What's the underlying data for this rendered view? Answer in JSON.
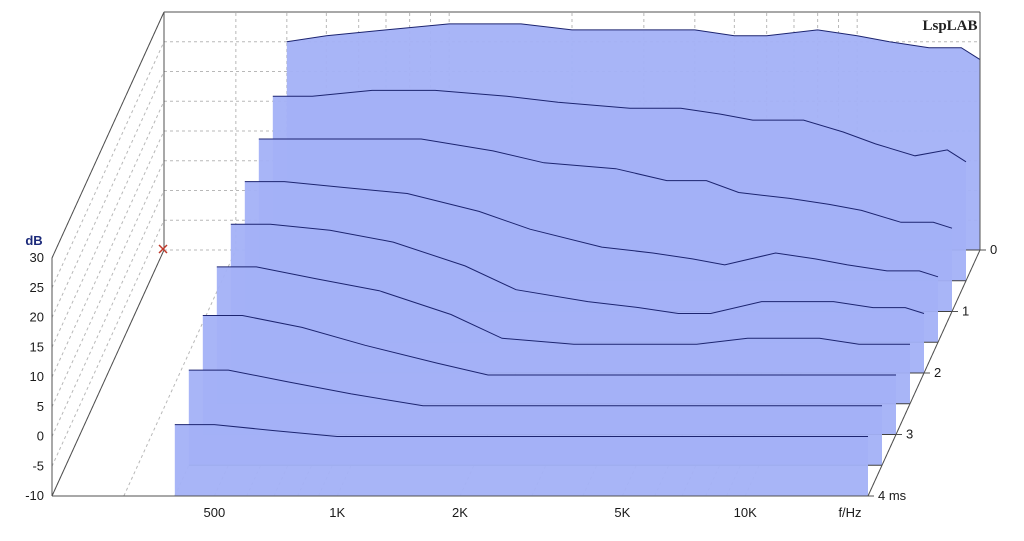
{
  "chart_data": {
    "type": "area",
    "subtype": "cumulative-spectral-decay-waterfall",
    "watermark": "LspLAB",
    "ylabel": "dB",
    "xlabel": "f/Hz",
    "zlabel": "ms",
    "ylim": [
      -10,
      30
    ],
    "xlim": [
      200,
      20000
    ],
    "x_scale": "log",
    "y_ticks": [
      "30",
      "25",
      "20",
      "15",
      "10",
      "5",
      "0",
      "-5",
      "-10"
    ],
    "x_ticks": [
      {
        "value": 500,
        "label": "500"
      },
      {
        "value": 1000,
        "label": "1K"
      },
      {
        "value": 2000,
        "label": "2K"
      },
      {
        "value": 5000,
        "label": "5K"
      },
      {
        "value": 10000,
        "label": "10K"
      }
    ],
    "time_ticks": [
      "0",
      "1",
      "2",
      "3",
      "4 ms"
    ],
    "grid": true,
    "colors": {
      "fill": "#a3b1f7",
      "line": "#1c2470",
      "grid": "#b8b8b8",
      "marker": "#c0392b"
    },
    "series": [
      {
        "time_ms": 0.0,
        "x": [
          400,
          500,
          700,
          1000,
          1500,
          2000,
          3000,
          4000,
          5000,
          6000,
          8000,
          10000,
          12000,
          15000,
          18000,
          20000
        ],
        "y": [
          25,
          26,
          27,
          28,
          28,
          27,
          27,
          27,
          26,
          26,
          27,
          26,
          25,
          24,
          24,
          22
        ]
      },
      {
        "time_ms": 0.5,
        "x": [
          400,
          500,
          700,
          1000,
          1500,
          2000,
          3000,
          4000,
          5000,
          6000,
          8000,
          10000,
          12000,
          15000,
          18000,
          20000
        ],
        "y": [
          21,
          21,
          22,
          22,
          21,
          20,
          19,
          19,
          18,
          17,
          17,
          15,
          13,
          11,
          12,
          10
        ]
      },
      {
        "time_ms": 1.0,
        "x": [
          400,
          500,
          700,
          1000,
          1500,
          2000,
          3000,
          4000,
          5000,
          6000,
          8000,
          10000,
          12000,
          15000,
          18000,
          20000
        ],
        "y": [
          19,
          19,
          19,
          19,
          17,
          15,
          14,
          12,
          12,
          10,
          9,
          8,
          7,
          5,
          5,
          4
        ]
      },
      {
        "time_ms": 1.5,
        "x": [
          400,
          500,
          700,
          1000,
          1500,
          2000,
          3000,
          4000,
          5000,
          6000,
          8000,
          10000,
          12000,
          15000,
          18000,
          20000
        ],
        "y": [
          17,
          17,
          16,
          15,
          12,
          9,
          6,
          5,
          4,
          3,
          5,
          4,
          3,
          2,
          2,
          1
        ]
      },
      {
        "time_ms": 2.0,
        "x": [
          400,
          500,
          700,
          1000,
          1500,
          2000,
          3000,
          4000,
          5000,
          6000,
          8000,
          10000,
          12000,
          15000,
          18000,
          20000
        ],
        "y": [
          15,
          15,
          14,
          12,
          8,
          4,
          2,
          1,
          0,
          0,
          2,
          2,
          2,
          1,
          1,
          0
        ]
      },
      {
        "time_ms": 2.5,
        "x": [
          400,
          500,
          700,
          1000,
          1500,
          2000,
          3000,
          4000,
          5000,
          6000,
          8000,
          10000,
          12000,
          15000,
          18000,
          20000
        ],
        "y": [
          13,
          13,
          11,
          9,
          5,
          1,
          0,
          0,
          0,
          0,
          1,
          1,
          1,
          0,
          0,
          0
        ]
      },
      {
        "time_ms": 3.0,
        "x": [
          400,
          500,
          700,
          1000,
          1500,
          2000,
          3000,
          4000,
          5000,
          6000,
          8000,
          10000,
          12000,
          15000,
          18000,
          20000
        ],
        "y": [
          10,
          10,
          8,
          5,
          2,
          0,
          0,
          0,
          0,
          0,
          0,
          0,
          0,
          0,
          0,
          0
        ]
      },
      {
        "time_ms": 3.5,
        "x": [
          400,
          500,
          700,
          1000,
          1500,
          2000,
          3000,
          4000,
          5000,
          6000,
          8000,
          10000,
          12000,
          15000,
          18000,
          20000
        ],
        "y": [
          6,
          6,
          4,
          2,
          0,
          0,
          0,
          0,
          0,
          0,
          0,
          0,
          0,
          0,
          0,
          0
        ]
      },
      {
        "time_ms": 4.0,
        "x": [
          400,
          500,
          700,
          1000,
          1500,
          2000,
          3000,
          4000,
          5000,
          6000,
          8000,
          10000,
          12000,
          15000,
          18000,
          20000
        ],
        "y": [
          2,
          2,
          1,
          0,
          0,
          0,
          0,
          0,
          0,
          0,
          0,
          0,
          0,
          0,
          0,
          0
        ]
      }
    ]
  }
}
